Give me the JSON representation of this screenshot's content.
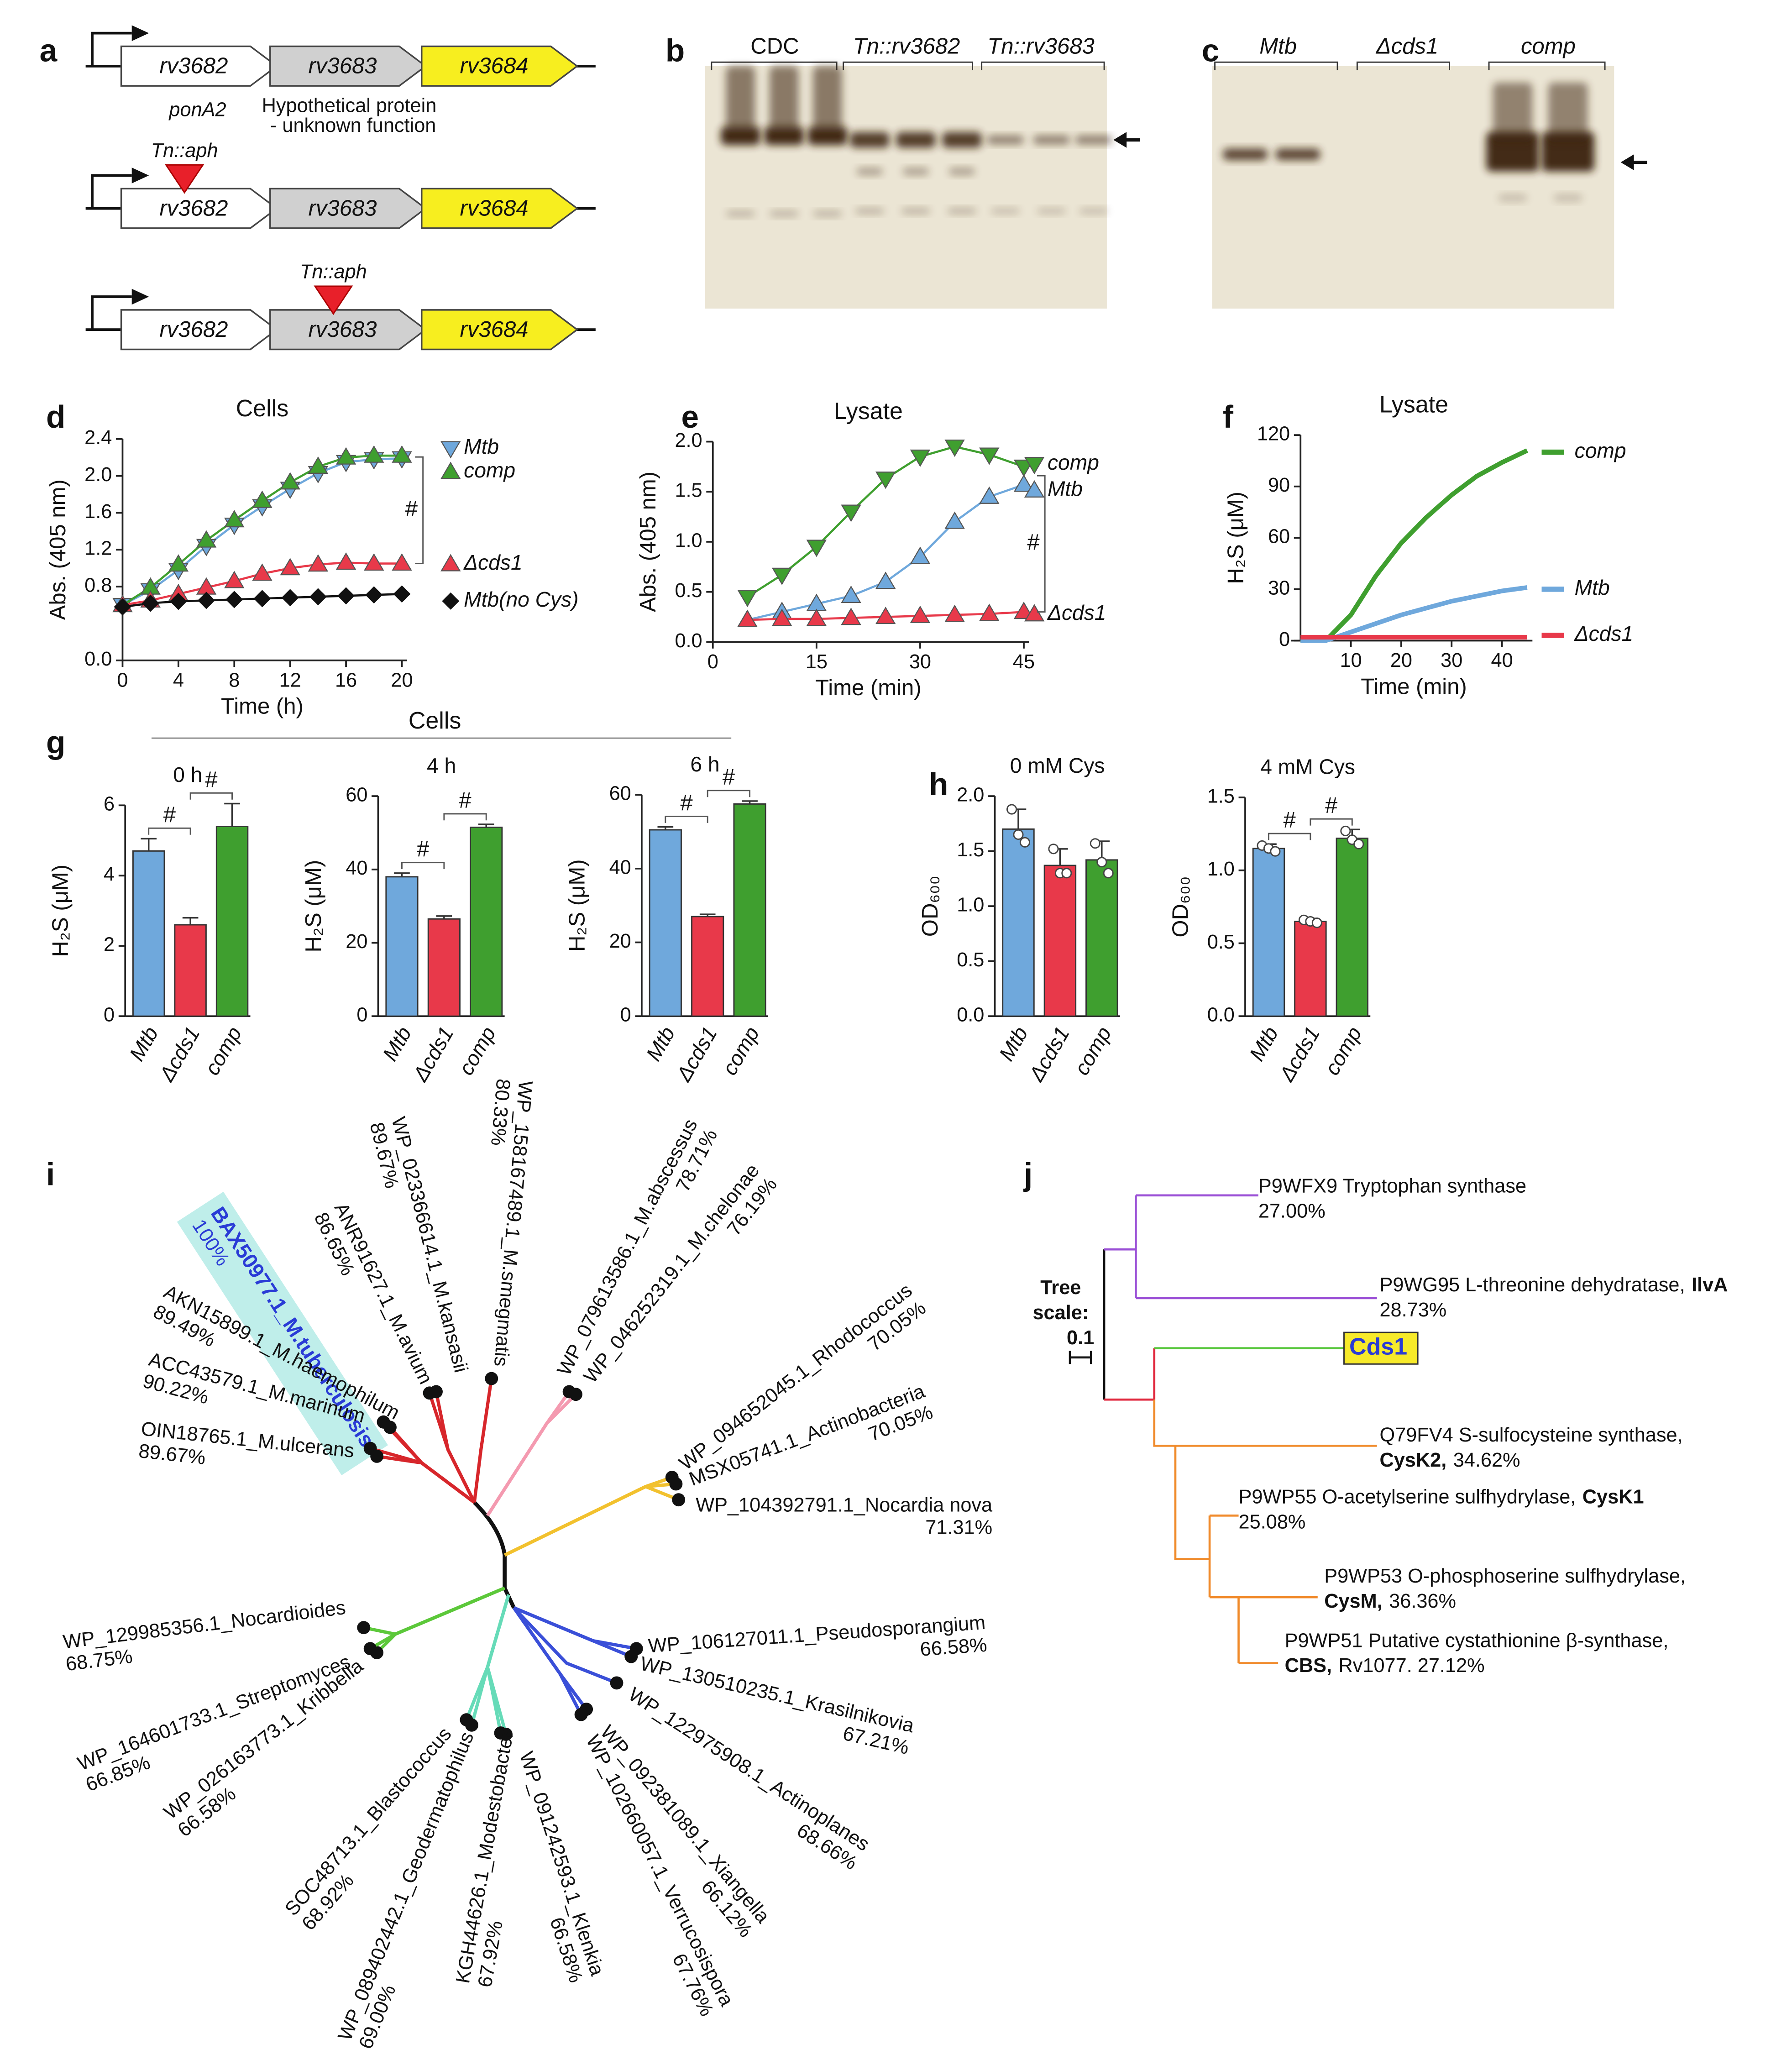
{
  "panel_labels": [
    "a",
    "b",
    "c",
    "d",
    "e",
    "f",
    "g",
    "h",
    "i",
    "j"
  ],
  "gene_map": {
    "rows": [
      {
        "genes": [
          "rv3682",
          "rv3683",
          "rv3684"
        ]
      },
      {
        "genes": [
          "rv3682",
          "rv3683",
          "rv3684"
        ],
        "insertion": "Tn::aph"
      },
      {
        "genes": [
          "rv3682",
          "rv3683",
          "rv3684"
        ],
        "insertion": "Tn::aph"
      }
    ],
    "notes": [
      "ponA2",
      "Hypothetical protein",
      "- unknown function"
    ]
  },
  "blots": [
    {
      "lanes": [
        "CDC",
        "Tn::rv3682",
        "Tn::rv3683"
      ]
    },
    {
      "lanes": [
        "Mtb",
        "Δcds1",
        "comp"
      ]
    }
  ],
  "cells_header": "Cells",
  "chart_data": [
    {
      "type": "line",
      "title": "Cells",
      "xlabel": "Time (h)",
      "ylabel": "Abs. (405 nm)",
      "x": [
        0,
        2,
        4,
        6,
        8,
        10,
        12,
        14,
        16,
        18,
        20
      ],
      "xlim": [
        0,
        20
      ],
      "xticks": [
        0,
        4,
        8,
        12,
        16,
        20
      ],
      "ylim": [
        0,
        2.4
      ],
      "yticks": [
        {
          "value": 0,
          "label": "0.0"
        },
        0.8,
        1.2,
        1.6,
        {
          "value": 2,
          "label": "2.0"
        },
        2.4
      ],
      "series": [
        {
          "name": "Mtb",
          "color": "#6fa8dc",
          "marker": "triangle-down",
          "values": [
            0.6,
            0.76,
            0.98,
            1.24,
            1.47,
            1.67,
            1.86,
            2.03,
            2.15,
            2.18,
            2.19
          ]
        },
        {
          "name": "comp",
          "color": "#3f9f2f",
          "marker": "triangle",
          "values": [
            0.6,
            0.79,
            1.04,
            1.3,
            1.52,
            1.73,
            1.93,
            2.1,
            2.2,
            2.22,
            2.22
          ]
        },
        {
          "name": "Δcds1",
          "color": "#e8394a",
          "marker": "triangle",
          "values": [
            0.6,
            0.65,
            0.72,
            0.79,
            0.86,
            0.94,
            1.0,
            1.04,
            1.06,
            1.05,
            1.05
          ]
        },
        {
          "name": "Mtb(no Cys)",
          "color": "#111111",
          "marker": "diamond",
          "values": [
            0.58,
            0.62,
            0.64,
            0.65,
            0.66,
            0.67,
            0.68,
            0.69,
            0.7,
            0.71,
            0.72
          ]
        }
      ],
      "annotations": [
        "#"
      ]
    },
    {
      "type": "line",
      "title": "Lysate",
      "xlabel": "Time (min)",
      "ylabel": "Abs. (405 nm)",
      "x": [
        5,
        10,
        15,
        20,
        25,
        30,
        35,
        40,
        45
      ],
      "xlim": [
        0,
        45
      ],
      "xticks": [
        0,
        15,
        30,
        45
      ],
      "ylim": [
        0,
        2
      ],
      "yticks": [
        {
          "value": 0,
          "label": "0.0"
        },
        0.5,
        {
          "value": 1,
          "label": "1.0"
        },
        1.5,
        {
          "value": 2,
          "label": "2.0"
        }
      ],
      "series": [
        {
          "name": "comp",
          "color": "#3f9f2f",
          "marker": "triangle-down",
          "values": [
            0.45,
            0.67,
            0.95,
            1.3,
            1.63,
            1.85,
            1.95,
            1.87,
            1.75
          ]
        },
        {
          "name": "Mtb",
          "color": "#6fa8dc",
          "marker": "triangle",
          "values": [
            0.22,
            0.3,
            0.38,
            0.46,
            0.6,
            0.85,
            1.2,
            1.45,
            1.57
          ]
        },
        {
          "name": "Δcds1",
          "color": "#e8394a",
          "marker": "triangle",
          "values": [
            0.22,
            0.23,
            0.23,
            0.24,
            0.25,
            0.26,
            0.27,
            0.28,
            0.3
          ]
        }
      ],
      "annotations": [
        "#"
      ]
    },
    {
      "type": "line",
      "title": "Lysate",
      "xlabel": "Time (min)",
      "ylabel": "H₂S (μM)",
      "x": [
        0,
        5,
        10,
        15,
        20,
        25,
        30,
        35,
        40,
        45
      ],
      "xlim": [
        0,
        45
      ],
      "xticks": [
        10,
        20,
        30,
        40
      ],
      "ylim": [
        0,
        120
      ],
      "yticks": [
        0,
        30,
        60,
        90,
        120
      ],
      "series": [
        {
          "name": "comp",
          "color": "#3f9f2f",
          "values": [
            0,
            0,
            15,
            38,
            57,
            72,
            85,
            96,
            104,
            111
          ]
        },
        {
          "name": "Mtb",
          "color": "#6fa8dc",
          "values": [
            0,
            0,
            5,
            10,
            15,
            19,
            23,
            26,
            29,
            31
          ]
        },
        {
          "name": "Δcds1",
          "color": "#e8394a",
          "values": [
            2,
            2,
            2,
            2,
            2,
            2,
            2,
            2,
            2,
            2
          ]
        }
      ]
    },
    {
      "type": "bar",
      "title": "0 h",
      "ylabel": "H₂S (μM)",
      "categories": [
        "Mtb",
        "Δcds1",
        "comp"
      ],
      "values": [
        4.7,
        2.6,
        5.4
      ],
      "errors": [
        0.35,
        0.2,
        0.65
      ],
      "colors": [
        "#6fa8dc",
        "#e8394a",
        "#3f9f2f"
      ],
      "ylim": [
        0,
        6
      ],
      "yticks": [
        0,
        2,
        4,
        6
      ],
      "annotations": [
        "#",
        "#"
      ]
    },
    {
      "type": "bar",
      "title": "4 h",
      "ylabel": "H₂S (μM)",
      "categories": [
        "Mtb",
        "Δcds1",
        "comp"
      ],
      "values": [
        38,
        26.5,
        51.5
      ],
      "errors": [
        1,
        0.8,
        0.8
      ],
      "colors": [
        "#6fa8dc",
        "#e8394a",
        "#3f9f2f"
      ],
      "ylim": [
        0,
        60
      ],
      "yticks": [
        0,
        20,
        40,
        60
      ],
      "annotations": [
        "#",
        "#"
      ]
    },
    {
      "type": "bar",
      "title": "6 h",
      "ylabel": "H₂S (μM)",
      "categories": [
        "Mtb",
        "Δcds1",
        "comp"
      ],
      "values": [
        50.5,
        27,
        57.5
      ],
      "errors": [
        0.8,
        0.6,
        0.8
      ],
      "colors": [
        "#6fa8dc",
        "#e8394a",
        "#3f9f2f"
      ],
      "ylim": [
        0,
        60
      ],
      "yticks": [
        0,
        20,
        40,
        60
      ],
      "annotations": [
        "#",
        "#"
      ]
    },
    {
      "type": "bar",
      "title": "0 mM Cys",
      "ylabel": "OD₆₀₀",
      "categories": [
        "Mtb",
        "Δcds1",
        "comp"
      ],
      "values": [
        1.7,
        1.37,
        1.42
      ],
      "errors": [
        0.18,
        0.15,
        0.17
      ],
      "points": [
        [
          1.88,
          1.65,
          1.58
        ],
        [
          1.52,
          1.3,
          1.3
        ],
        [
          1.57,
          1.4,
          1.3
        ]
      ],
      "colors": [
        "#6fa8dc",
        "#e8394a",
        "#3f9f2f"
      ],
      "ylim": [
        0,
        2
      ],
      "yticks": [
        {
          "value": 0,
          "label": "0.0"
        },
        0.5,
        {
          "value": 1,
          "label": "1.0"
        },
        1.5,
        {
          "value": 2,
          "label": "2.0"
        }
      ]
    },
    {
      "type": "bar",
      "title": "4 mM Cys",
      "ylabel": "OD₆₀₀",
      "categories": [
        "Mtb",
        "Δcds1",
        "comp"
      ],
      "values": [
        1.15,
        0.65,
        1.22
      ],
      "errors": [
        0.03,
        0.02,
        0.06
      ],
      "points": [
        [
          1.17,
          1.15,
          1.13
        ],
        [
          0.66,
          0.65,
          0.64
        ],
        [
          1.27,
          1.21,
          1.18
        ]
      ],
      "colors": [
        "#6fa8dc",
        "#e8394a",
        "#3f9f2f"
      ],
      "ylim": [
        0,
        1.5
      ],
      "yticks": [
        {
          "value": 0,
          "label": "0.0"
        },
        0.5,
        {
          "value": 1,
          "label": "1.0"
        },
        1.5
      ],
      "annotations": [
        "#",
        "#"
      ]
    }
  ],
  "tree_i": {
    "leaves": [
      {
        "name": "BAX50977.1_M.tuberculosis",
        "identity": "100%",
        "highlight": true
      },
      {
        "name": "AKN15899.1_M.haemophilum",
        "identity": "89.49%"
      },
      {
        "name": "ACC43579.1_M.marinum",
        "identity": "90.22%"
      },
      {
        "name": "OIN18765.1_M.ulcerans",
        "identity": "89.67%"
      },
      {
        "name": "ANR91627.1_M.avium",
        "identity": "86.65%"
      },
      {
        "name": "WP_023366614.1_M.kansasii",
        "identity": "89.67%"
      },
      {
        "name": "WP_158167489.1_M.smegmatis",
        "identity": "80.33%"
      },
      {
        "name": "WP_079613586.1_M.abscessus",
        "identity": "78.71%"
      },
      {
        "name": "WP_046252319.1_M.chelonae",
        "identity": "76.19%"
      },
      {
        "name": "WP_094652045.1_Rhodococcus",
        "identity": "70.05%"
      },
      {
        "name": "MSX05741.1_Actinobacteria",
        "identity": "70.05%"
      },
      {
        "name": "WP_104392791.1_Nocardia nova",
        "identity": "71.31%"
      },
      {
        "name": "WP_106127011.1_Pseudosporangium",
        "identity": "66.58%"
      },
      {
        "name": "WP_130510235.1_Krasilnikovia",
        "identity": "67.21%"
      },
      {
        "name": "WP_122975908.1_Actinoplanes",
        "identity": "68.66%"
      },
      {
        "name": "WP_092381089.1_Xiangella",
        "identity": "66.12%"
      },
      {
        "name": "WP_102660057.1_Verrucosispora",
        "identity": "67.76%"
      },
      {
        "name": "WP_091242593.1_Klenkia",
        "identity": "66.58%"
      },
      {
        "name": "KGH44626.1_Modestobacter",
        "identity": "67.92%"
      },
      {
        "name": "WP_089402442.1_Geodermatophilus",
        "identity": "69.00%"
      },
      {
        "name": "SOC48713.1_Blastococcus",
        "identity": "68.92%"
      },
      {
        "name": "WP_026163773.1_Kribbella",
        "identity": "66.58%"
      },
      {
        "name": "WP_164601733.1_Streptomyces",
        "identity": "66.85%"
      },
      {
        "name": "WP_129985356.1_Nocardioides",
        "identity": "68.75%"
      }
    ]
  },
  "tree_j": {
    "scale_label": [
      "Tree",
      "scale:"
    ],
    "scale": "0.1",
    "leaves": [
      {
        "line1": [
          {
            "text": "P9WFX9 Tryptophan synthase"
          }
        ],
        "line2": [
          {
            "text": "27.00%"
          }
        ]
      },
      {
        "line1": [
          {
            "text": "P9WG95 L-threonine dehydratase,"
          },
          {
            "text": "IlvA",
            "bold": true
          }
        ],
        "line2": [
          {
            "text": "28.73%"
          }
        ]
      },
      {
        "line1": [
          {
            "text": "Cds1",
            "bold": true
          }
        ],
        "highlight": true
      },
      {
        "line1": [
          {
            "text": "Q79FV4 S-sulfocysteine synthase,"
          }
        ],
        "line2": [
          {
            "text": "CysK2,",
            "bold": true
          },
          {
            "text": "34.62%"
          }
        ]
      },
      {
        "line1": [
          {
            "text": "P9WP55 O-acetylserine sulfhydrylase,"
          },
          {
            "text": "CysK1",
            "bold": true
          }
        ],
        "line2": [
          {
            "text": "25.08%"
          }
        ]
      },
      {
        "line1": [
          {
            "text": "P9WP53 O-phosphoserine sulfhydrylase,"
          }
        ],
        "line2": [
          {
            "text": "CysM,",
            "bold": true
          },
          {
            "text": "36.36%"
          }
        ]
      },
      {
        "line1": [
          {
            "text": "P9WP51 Putative cystathionine β-synthase,"
          }
        ],
        "line2": [
          {
            "text": "CBS,",
            "bold": true
          },
          {
            "text": "Rv1077. 27.12%"
          }
        ]
      }
    ]
  }
}
